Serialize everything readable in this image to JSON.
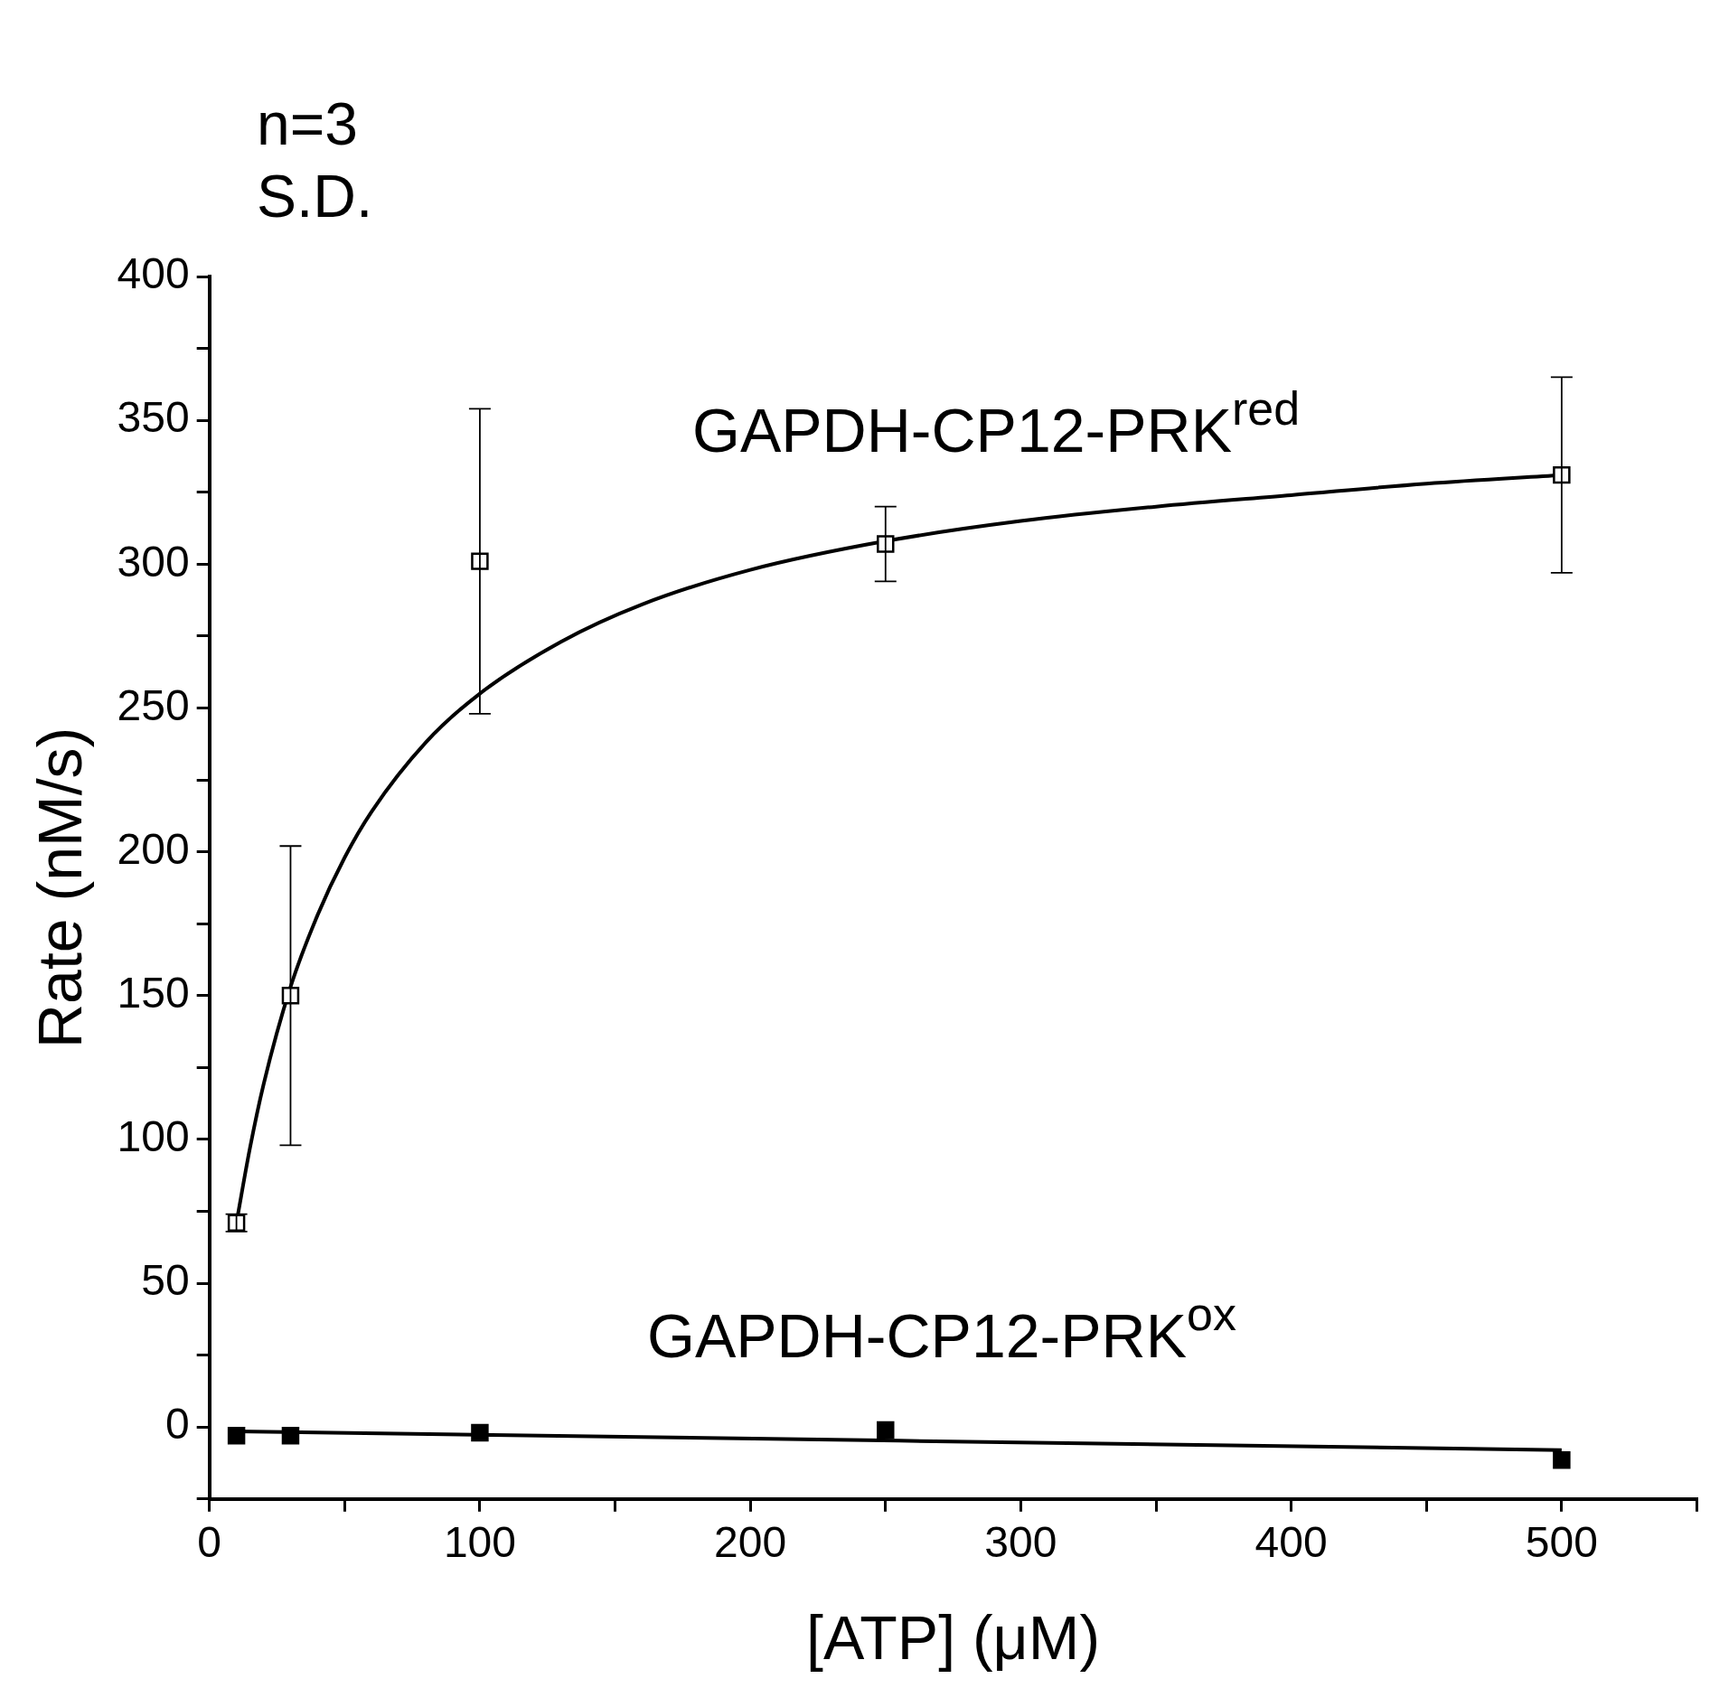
{
  "chart_data": {
    "type": "scatter",
    "xlabel": "[ATP] (μM)",
    "ylabel": "Rate (nM/s)",
    "annotations": [
      "n=3",
      "S.D."
    ],
    "xlim": [
      0,
      550
    ],
    "ylim": [
      -25,
      400
    ],
    "xticks": [
      0,
      {
        "value": 50,
        "label": null
      },
      100,
      {
        "value": 150,
        "label": null
      },
      200,
      {
        "value": 250,
        "label": null
      },
      300,
      {
        "value": 350,
        "label": null
      },
      400,
      {
        "value": 450,
        "label": null
      },
      500,
      {
        "value": 550,
        "label": null
      }
    ],
    "yticks": [
      {
        "value": -25,
        "label": null
      },
      0,
      {
        "value": 25,
        "label": null
      },
      50,
      {
        "value": 75,
        "label": null
      },
      100,
      {
        "value": 125,
        "label": null
      },
      150,
      {
        "value": 175,
        "label": null
      },
      200,
      {
        "value": 225,
        "label": null
      },
      250,
      {
        "value": 275,
        "label": null
      },
      300,
      {
        "value": 325,
        "label": null
      },
      350,
      {
        "value": 375,
        "label": null
      },
      400
    ],
    "grid": false,
    "legend": false,
    "marker": "square",
    "series": [
      {
        "name": "GAPDH-CP12-PRK$^{red}$",
        "type": "scatter",
        "color": "#000000",
        "x": [
          10,
          30,
          100,
          250,
          500
        ],
        "values": [
          71,
          150,
          301,
          307,
          331
        ],
        "errors": [
          3,
          52,
          53,
          13,
          34
        ]
      },
      {
        "name": "GAPDH-CP12-PRK$^{ox}$",
        "type": "scatter",
        "color": "#000000",
        "x": [
          10,
          30,
          100,
          250,
          500
        ],
        "values": [
          -3,
          -3,
          -2,
          -1,
          -11.5
        ]
      },
      {
        "type": "line",
        "color": "#000000",
        "marker": "none",
        "x": [
          10,
          15,
          20,
          30,
          40,
          50,
          60,
          80,
          100,
          130,
          160,
          200,
          250,
          300,
          350,
          400,
          450,
          500
        ],
        "values": [
          71,
          97,
          119,
          153,
          178,
          198,
          214,
          238,
          255,
          273,
          286,
          298,
          308,
          315,
          320,
          324,
          328,
          331
        ]
      },
      {
        "type": "line",
        "color": "#000000",
        "marker": "none",
        "x": [
          10,
          500
        ],
        "values": [
          -1.5,
          -8
        ]
      }
    ]
  }
}
